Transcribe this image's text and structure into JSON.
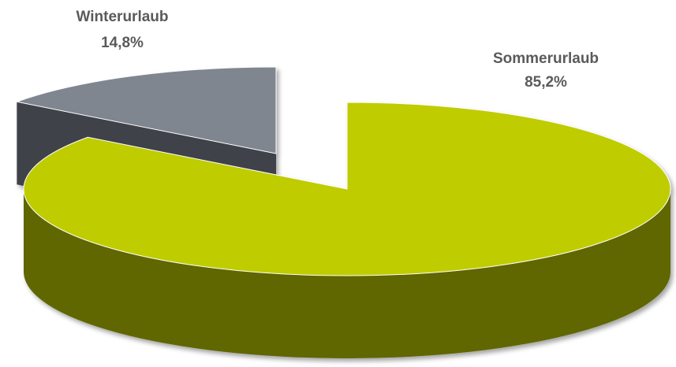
{
  "chart_data": {
    "type": "pie",
    "categories": [
      "Winterurlaub",
      "Sommerurlaub"
    ],
    "values": [
      14.8,
      85.2
    ],
    "value_labels": [
      "14,8%",
      "85,2%"
    ],
    "colors": [
      "#7f8690",
      "#bfcc00"
    ]
  }
}
